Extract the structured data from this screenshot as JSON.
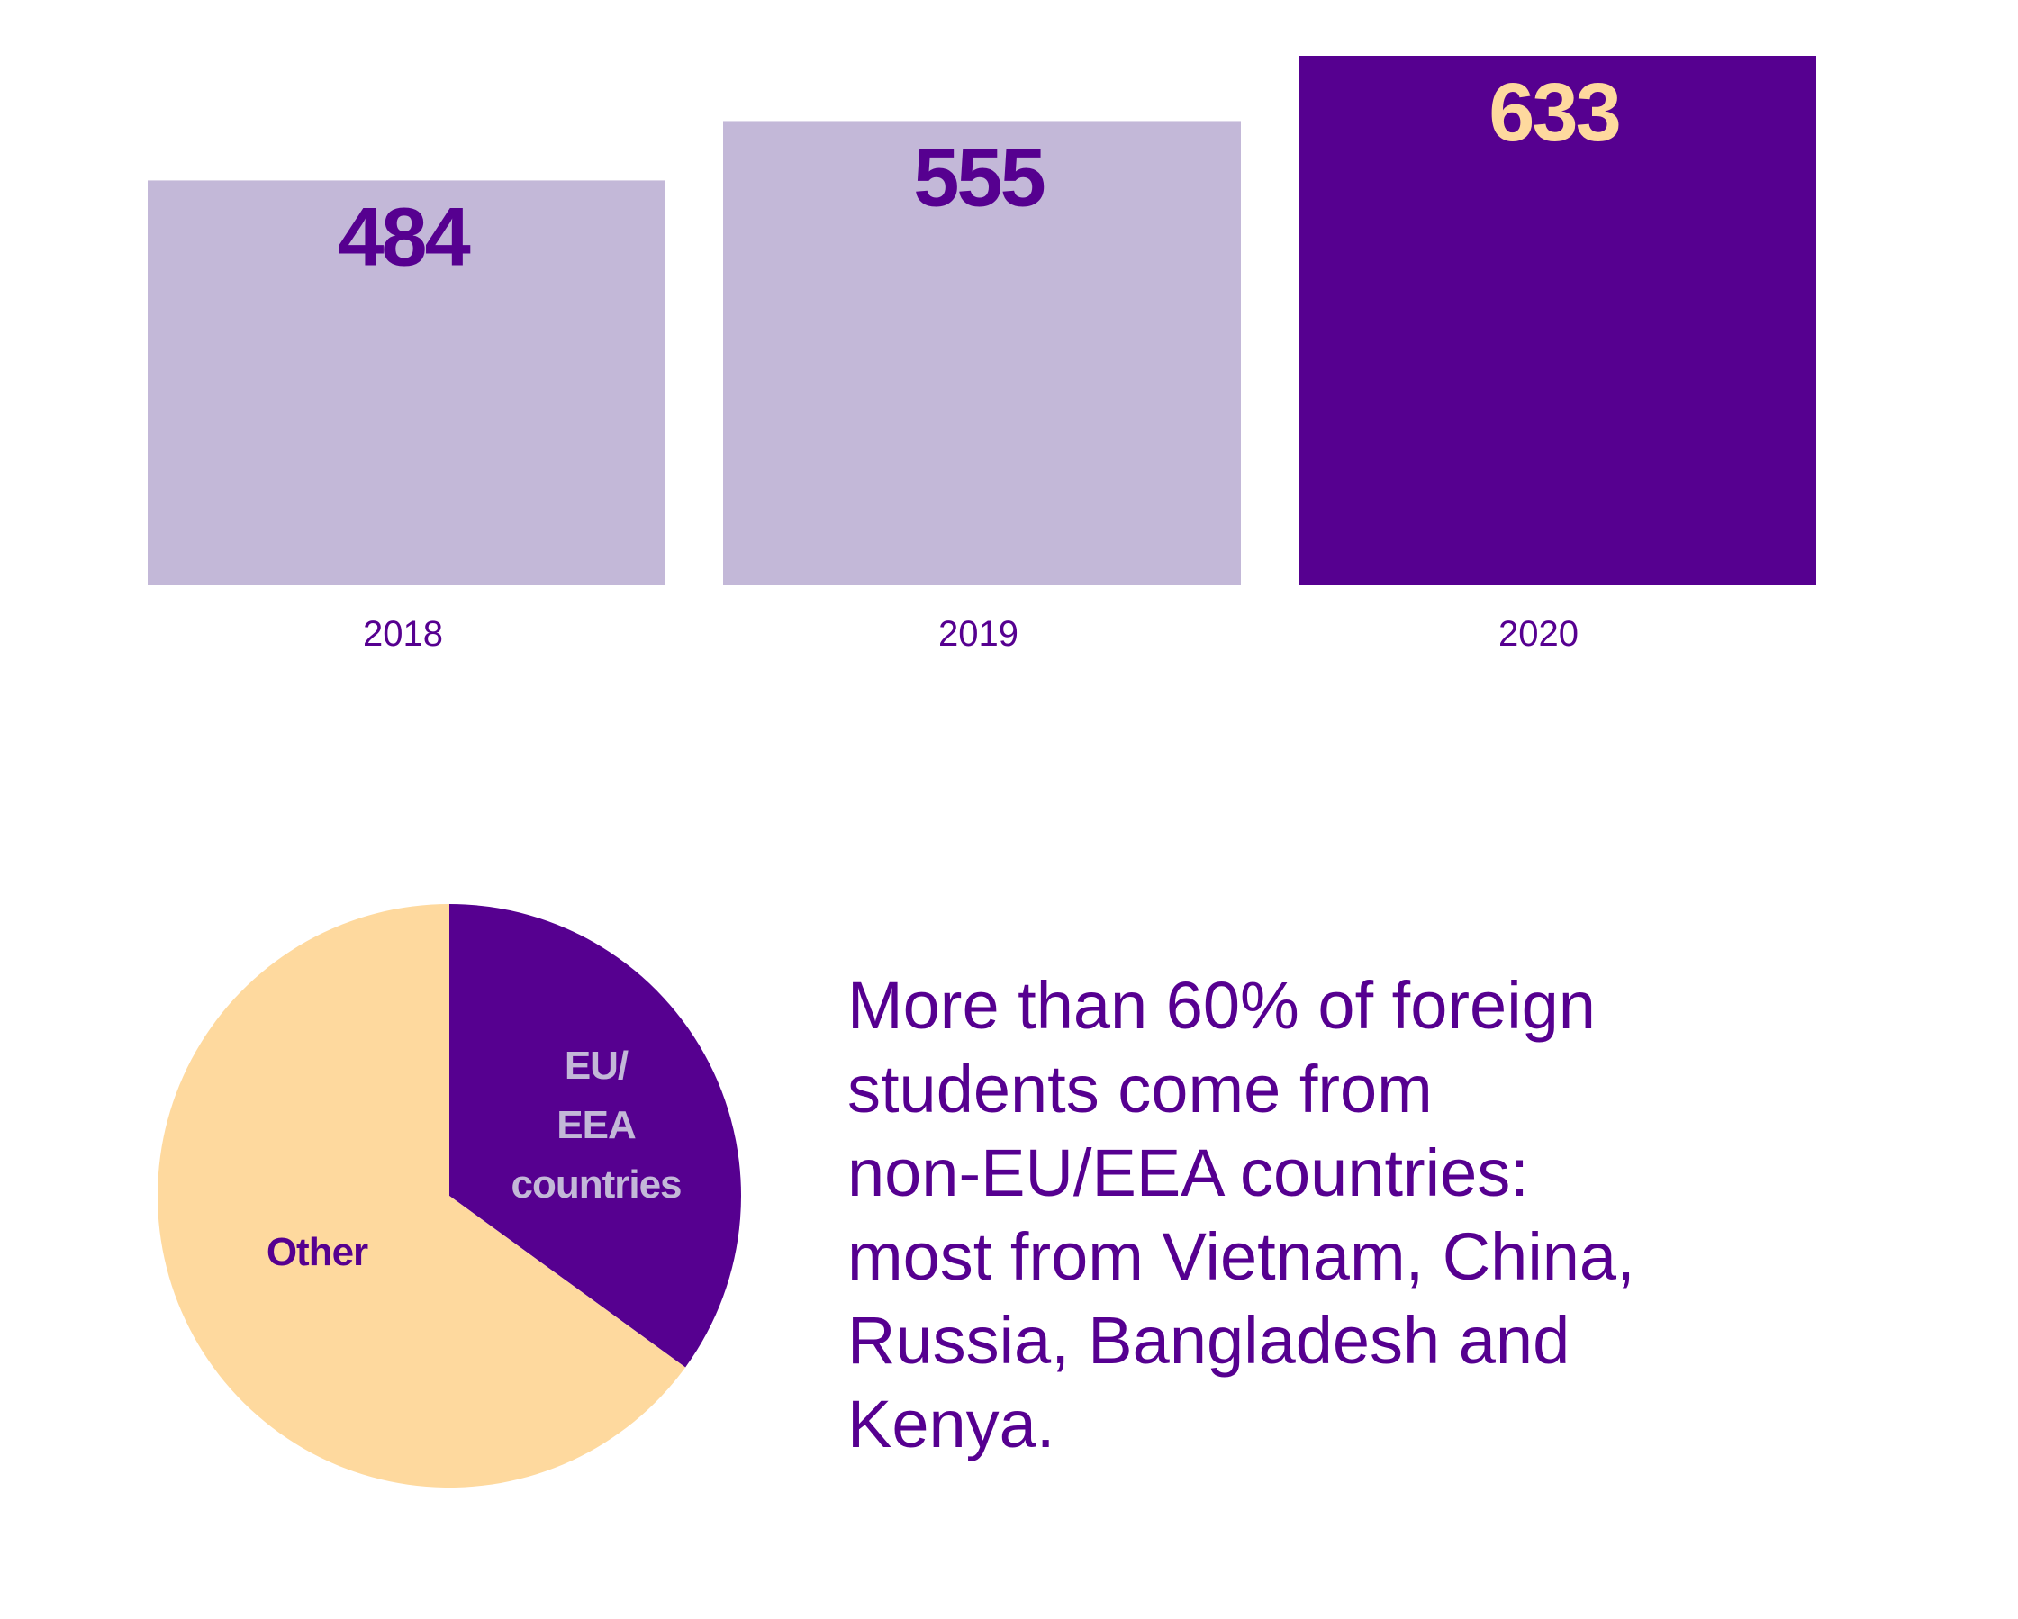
{
  "colors": {
    "dark_purple": "#560090",
    "light_purple": "#c3b8d8",
    "peach": "#fed99e",
    "white": "#ffffff"
  },
  "chart_data": [
    {
      "type": "bar",
      "categories": [
        "2018",
        "2019",
        "2020"
      ],
      "values": [
        484,
        555,
        633
      ],
      "title": "",
      "xlabel": "",
      "ylabel": "",
      "ylim": [
        0,
        633
      ],
      "grid": false,
      "bar_colors": [
        "#c3b8d8",
        "#c3b8d8",
        "#560090"
      ],
      "value_label_colors": [
        "#560090",
        "#560090",
        "#fed99e"
      ]
    },
    {
      "type": "pie",
      "slices": [
        {
          "label": "EU/\nEEA\ncountries",
          "value": 35,
          "color": "#560090",
          "label_color": "#c3b8d8"
        },
        {
          "label": "Other",
          "value": 65,
          "color": "#fed99e",
          "label_color": "#560090"
        }
      ]
    }
  ],
  "caption": "More than 60% of foreign\nstudents come from\nnon-EU/EEA countries:\nmost from Vietnam, China,\nRussia, Bangladesh and\nKenya."
}
